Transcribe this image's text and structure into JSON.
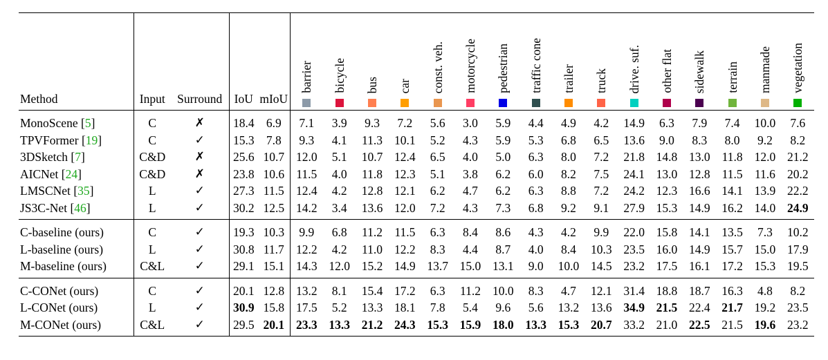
{
  "header": {
    "method": "Method",
    "input": "Input",
    "surround": "Surround",
    "iou": "IoU",
    "miou": "mIoU"
  },
  "classes": [
    {
      "name": "barrier",
      "color": "#8c9aa8"
    },
    {
      "name": "bicycle",
      "color": "#dc143c"
    },
    {
      "name": "bus",
      "color": "#ff7f50"
    },
    {
      "name": "car",
      "color": "#ff9e00"
    },
    {
      "name": "const. veh.",
      "color": "#e9964f"
    },
    {
      "name": "motorcycle",
      "color": "#ff3d63"
    },
    {
      "name": "pedestrian",
      "color": "#0000e6"
    },
    {
      "name": "traffic cone",
      "color": "#2f4f4f"
    },
    {
      "name": "trailer",
      "color": "#ff8c00"
    },
    {
      "name": "truck",
      "color": "#ff6347"
    },
    {
      "name": "drive. suf.",
      "color": "#00cfbf"
    },
    {
      "name": "other flat",
      "color": "#af004b"
    },
    {
      "name": "sidewalk",
      "color": "#4b0050"
    },
    {
      "name": "terrain",
      "color": "#70b43c"
    },
    {
      "name": "manmade",
      "color": "#deb887"
    },
    {
      "name": "vegetation",
      "color": "#00af00"
    }
  ],
  "sections": [
    [
      {
        "method": "MonoScene",
        "cite": "5",
        "input": "C",
        "surround": "✗",
        "iou": "18.4",
        "miou": "6.9",
        "vals": [
          "7.1",
          "3.9",
          "9.3",
          "7.2",
          "5.6",
          "3.0",
          "5.9",
          "4.4",
          "4.9",
          "4.2",
          "14.9",
          "6.3",
          "7.9",
          "7.4",
          "10.0",
          "7.6"
        ],
        "bold": []
      },
      {
        "method": "TPVFormer",
        "cite": "19",
        "input": "C",
        "surround": "✓",
        "iou": "15.3",
        "miou": "7.8",
        "vals": [
          "9.3",
          "4.1",
          "11.3",
          "10.1",
          "5.2",
          "4.3",
          "5.9",
          "5.3",
          "6.8",
          "6.5",
          "13.6",
          "9.0",
          "8.3",
          "8.0",
          "9.2",
          "8.2"
        ],
        "bold": []
      },
      {
        "method": "3DSketch",
        "cite": "7",
        "input": "C&D",
        "surround": "✗",
        "iou": "25.6",
        "miou": "10.7",
        "vals": [
          "12.0",
          "5.1",
          "10.7",
          "12.4",
          "6.5",
          "4.0",
          "5.0",
          "6.3",
          "8.0",
          "7.2",
          "21.8",
          "14.8",
          "13.0",
          "11.8",
          "12.0",
          "21.2"
        ],
        "bold": []
      },
      {
        "method": "AICNet",
        "cite": "24",
        "input": "C&D",
        "surround": "✗",
        "iou": "23.8",
        "miou": "10.6",
        "vals": [
          "11.5",
          "4.0",
          "11.8",
          "12.3",
          "5.1",
          "3.8",
          "6.2",
          "6.0",
          "8.2",
          "7.5",
          "24.1",
          "13.0",
          "12.8",
          "11.5",
          "11.6",
          "20.2"
        ],
        "bold": []
      },
      {
        "method": "LMSCNet",
        "cite": "35",
        "input": "L",
        "surround": "✓",
        "iou": "27.3",
        "miou": "11.5",
        "vals": [
          "12.4",
          "4.2",
          "12.8",
          "12.1",
          "6.2",
          "4.7",
          "6.2",
          "6.3",
          "8.8",
          "7.2",
          "24.2",
          "12.3",
          "16.6",
          "14.1",
          "13.9",
          "22.2"
        ],
        "bold": []
      },
      {
        "method": "JS3C-Net",
        "cite": "46",
        "input": "L",
        "surround": "✓",
        "iou": "30.2",
        "miou": "12.5",
        "vals": [
          "14.2",
          "3.4",
          "13.6",
          "12.0",
          "7.2",
          "4.3",
          "7.3",
          "6.8",
          "9.2",
          "9.1",
          "27.9",
          "15.3",
          "14.9",
          "16.2",
          "14.0",
          "24.9"
        ],
        "bold": [
          "v15"
        ]
      }
    ],
    [
      {
        "method": "C-baseline (ours)",
        "cite": "",
        "input": "C",
        "surround": "✓",
        "iou": "19.3",
        "miou": "10.3",
        "vals": [
          "9.9",
          "6.8",
          "11.2",
          "11.5",
          "6.3",
          "8.4",
          "8.6",
          "4.3",
          "4.2",
          "9.9",
          "22.0",
          "15.8",
          "14.1",
          "13.5",
          "7.3",
          "10.2"
        ],
        "bold": []
      },
      {
        "method": "L-baseline (ours)",
        "cite": "",
        "input": "L",
        "surround": "✓",
        "iou": "30.8",
        "miou": "11.7",
        "vals": [
          "12.2",
          "4.2",
          "11.0",
          "12.2",
          "8.3",
          "4.4",
          "8.7",
          "4.0",
          "8.4",
          "10.3",
          "23.5",
          "16.0",
          "14.9",
          "15.7",
          "15.0",
          "17.9"
        ],
        "bold": []
      },
      {
        "method": "M-baseline (ours)",
        "cite": "",
        "input": "C&L",
        "surround": "✓",
        "iou": "29.1",
        "miou": "15.1",
        "vals": [
          "14.3",
          "12.0",
          "15.2",
          "14.9",
          "13.7",
          "15.0",
          "13.1",
          "9.0",
          "10.0",
          "14.5",
          "23.2",
          "17.5",
          "16.1",
          "17.2",
          "15.3",
          "19.5"
        ],
        "bold": []
      }
    ],
    [
      {
        "method": "C-CONet (ours)",
        "cite": "",
        "input": "C",
        "surround": "✓",
        "iou": "20.1",
        "miou": "12.8",
        "vals": [
          "13.2",
          "8.1",
          "15.4",
          "17.2",
          "6.3",
          "11.2",
          "10.0",
          "8.3",
          "4.7",
          "12.1",
          "31.4",
          "18.8",
          "18.7",
          "16.3",
          "4.8",
          "8.2"
        ],
        "bold": []
      },
      {
        "method": "L-CONet (ours)",
        "cite": "",
        "input": "L",
        "surround": "✓",
        "iou": "30.9",
        "miou": "15.8",
        "vals": [
          "17.5",
          "5.2",
          "13.3",
          "18.1",
          "7.8",
          "5.4",
          "9.6",
          "5.6",
          "13.2",
          "13.6",
          "34.9",
          "21.5",
          "22.4",
          "21.7",
          "19.2",
          "23.5"
        ],
        "bold": [
          "iou",
          "v10",
          "v11",
          "v13"
        ]
      },
      {
        "method": "M-CONet (ours)",
        "cite": "",
        "input": "C&L",
        "surround": "✓",
        "iou": "29.5",
        "miou": "20.1",
        "vals": [
          "23.3",
          "13.3",
          "21.2",
          "24.3",
          "15.3",
          "15.9",
          "18.0",
          "13.3",
          "15.3",
          "20.7",
          "33.2",
          "21.0",
          "22.5",
          "21.5",
          "19.6",
          "23.2"
        ],
        "bold": [
          "miou",
          "v0",
          "v1",
          "v2",
          "v3",
          "v4",
          "v5",
          "v6",
          "v7",
          "v8",
          "v9",
          "v12",
          "v14"
        ]
      }
    ]
  ]
}
